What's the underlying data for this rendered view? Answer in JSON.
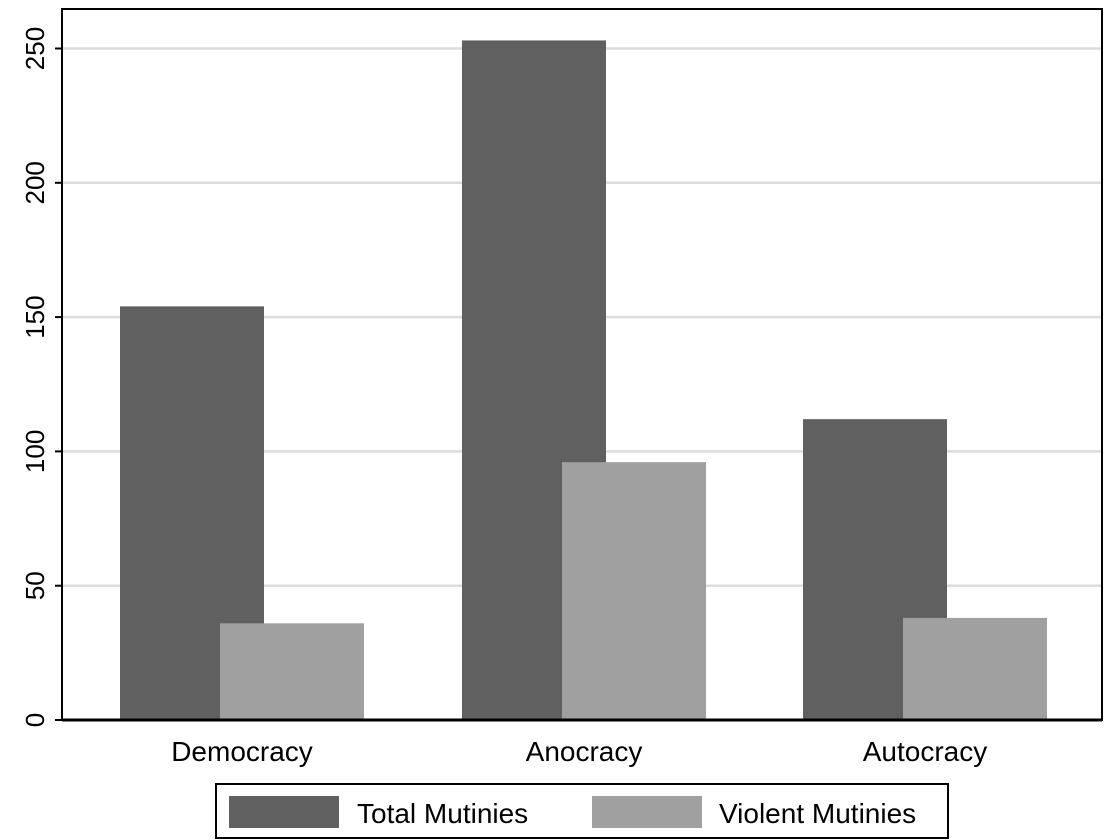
{
  "chart_data": {
    "type": "bar",
    "categories": [
      "Democracy",
      "Anocracy",
      "Autocracy"
    ],
    "series": [
      {
        "name": "Total Mutinies",
        "values": [
          154,
          253,
          112
        ],
        "color": "#606060"
      },
      {
        "name": "Violent Mutinies",
        "values": [
          36,
          96,
          38
        ],
        "color": "#a0a0a0"
      }
    ],
    "ylim": [
      0,
      260
    ],
    "yticks": [
      0,
      50,
      100,
      150,
      200,
      250
    ],
    "grid": true,
    "legend_position": "bottom"
  }
}
